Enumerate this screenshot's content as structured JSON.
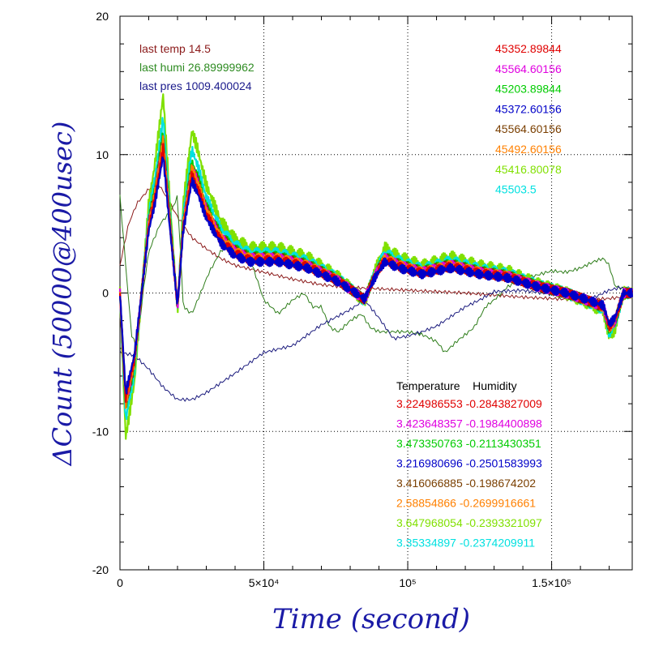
{
  "chart_data": {
    "type": "line",
    "xlabel": "Time (second)",
    "ylabel": "ΔCount (50000@400usec)",
    "xlim": [
      0,
      178000
    ],
    "ylim": [
      -20,
      20
    ],
    "grid": true,
    "x_ticks": [
      {
        "value": 0,
        "label": "0"
      },
      {
        "value": 50000,
        "label": "5×10⁴"
      },
      {
        "value": 100000,
        "label": "10⁵"
      },
      {
        "value": 150000,
        "label": "1.5×10⁵"
      }
    ],
    "y_ticks": [
      {
        "value": -20,
        "label": "-20"
      },
      {
        "value": -10,
        "label": "-10"
      },
      {
        "value": 0,
        "label": "0"
      },
      {
        "value": 10,
        "label": "10"
      },
      {
        "value": 20,
        "label": "20"
      }
    ],
    "env_text": [
      {
        "text": "last temp 14.5",
        "color": "#8b1a1a"
      },
      {
        "text": "last humi 26.89999962",
        "color": "#2e8b22"
      },
      {
        "text": "last pres 1009.400024",
        "color": "#1a1a8b"
      }
    ],
    "channel_means": [
      {
        "text": "45352.89844",
        "color": "#e00000"
      },
      {
        "text": "45564.60156",
        "color": "#e000e0"
      },
      {
        "text": "45203.89844",
        "color": "#00cc00"
      },
      {
        "text": "45372.60156",
        "color": "#0000c8"
      },
      {
        "text": "45564.60156",
        "color": "#7a3f00"
      },
      {
        "text": "45492.60156",
        "color": "#ff8000"
      },
      {
        "text": "45416.80078",
        "color": "#80e000"
      },
      {
        "text": "45503.5",
        "color": "#00e0e0"
      }
    ],
    "coef_header": "Temperature    Humidity",
    "coefficients": [
      {
        "text": "3.224986553 -0.2843827009",
        "color": "#e00000"
      },
      {
        "text": "3.423648357 -0.1984400898",
        "color": "#e000e0"
      },
      {
        "text": "3.473350763 -0.2113430351",
        "color": "#00cc00"
      },
      {
        "text": "3.216980696 -0.2501583993",
        "color": "#0000c8"
      },
      {
        "text": "3.416066885 -0.198674202",
        "color": "#7a3f00"
      },
      {
        "text": "2.58854866 -0.2699916661",
        "color": "#ff8000"
      },
      {
        "text": "3.647968054 -0.2393321097",
        "color": "#80e000"
      },
      {
        "text": "3.35334897 -0.2374209911",
        "color": "#00e0e0"
      }
    ],
    "base_curve": {
      "x": [
        0,
        2000,
        5000,
        8000,
        10000,
        12000,
        15000,
        17000,
        20000,
        22000,
        25000,
        27000,
        30000,
        35000,
        40000,
        45000,
        55000,
        65000,
        75000,
        82000,
        85000,
        88000,
        92000,
        97000,
        105000,
        115000,
        125000,
        135000,
        145000,
        155000,
        162000,
        168000,
        170000,
        172000,
        175000,
        178000
      ],
      "y": [
        0,
        -8,
        -5,
        1,
        5,
        7,
        11,
        6,
        -1,
        5,
        9,
        8,
        6,
        4,
        3,
        2.5,
        2.5,
        2,
        1,
        0,
        -0.5,
        1,
        2.5,
        2,
        1.5,
        2,
        1.5,
        1.2,
        0.5,
        0,
        -0.5,
        -1,
        -2.5,
        -2,
        0,
        0
      ]
    },
    "series": [
      {
        "name": "45352.89844",
        "color": "#e00000",
        "scale": 0.95
      },
      {
        "name": "45564.60156",
        "color": "#e000e0",
        "scale": 1.0
      },
      {
        "name": "45203.89844",
        "color": "#00cc00",
        "scale": 1.05
      },
      {
        "name": "45372.60156",
        "color": "#0000c8",
        "scale": 0.9
      },
      {
        "name": "45564.60156",
        "color": "#7a3f00",
        "scale": 1.02
      },
      {
        "name": "45492.60156",
        "color": "#ff8000",
        "scale": 1.0
      },
      {
        "name": "45416.80078",
        "color": "#80e000",
        "scale": 1.3
      },
      {
        "name": "45503.5",
        "color": "#00e0e0",
        "scale": 1.15
      }
    ],
    "env_series": [
      {
        "name": "last temp 14.5",
        "color": "#8b1a1a",
        "x": [
          0,
          3000,
          6000,
          10000,
          13000,
          16000,
          20000,
          25000,
          30000,
          35000,
          40000,
          50000,
          60000,
          70000,
          80000,
          90000,
          100000,
          120000,
          140000,
          160000,
          170000,
          178000
        ],
        "y": [
          2,
          5,
          6.5,
          7.5,
          8,
          7,
          5.5,
          4,
          3.2,
          2.5,
          2,
          1.5,
          1,
          0.6,
          0.4,
          0.3,
          0.2,
          0,
          -0.3,
          -0.5,
          -0.4,
          -0.2
        ]
      },
      {
        "name": "last humi 26.89999962",
        "color": "#2e7d1a",
        "x": [
          0,
          2000,
          4000,
          6000,
          8000,
          10000,
          14000,
          18000,
          20000,
          22000,
          25000,
          28000,
          31000,
          35000,
          40000,
          46000,
          50000,
          55000,
          60000,
          64000,
          67000,
          70000,
          73000,
          76000,
          80000,
          84000,
          87000,
          90000,
          95000,
          100000,
          105000,
          110000,
          113000,
          117000,
          120000,
          123000,
          127000,
          130000,
          135000,
          140000,
          145000,
          150000,
          155000,
          160000,
          165000,
          168000,
          170000,
          172000,
          175000,
          178000
        ],
        "y": [
          7,
          2,
          -3,
          -4,
          0,
          3,
          5,
          6,
          7,
          -1,
          -1.5,
          0,
          1.5,
          3,
          4,
          2,
          -0.5,
          -1.5,
          -0.5,
          0,
          -1,
          -1,
          -2.5,
          -2.8,
          -2,
          -1.5,
          -2.5,
          -2.8,
          -2.8,
          -2.8,
          -3,
          -3.5,
          -4.3,
          -3.5,
          -3,
          -2.5,
          -1,
          -0.5,
          0.5,
          1,
          1.3,
          1.6,
          1.5,
          1.8,
          2.3,
          2.5,
          2.0,
          0.5,
          0.3,
          0
        ]
      },
      {
        "name": "last pres 1009.400024",
        "color": "#1a1a7d",
        "x": [
          0,
          5000,
          10000,
          15000,
          20000,
          25000,
          30000,
          40000,
          50000,
          60000,
          70000,
          80000,
          85000,
          90000,
          95000,
          100000,
          105000,
          110000,
          115000,
          120000,
          125000,
          130000,
          140000,
          150000,
          160000,
          165000,
          170000,
          174000,
          178000
        ],
        "y": [
          -4.3,
          -4.5,
          -5.5,
          -6.8,
          -7.7,
          -7.7,
          -7.2,
          -5.8,
          -4.3,
          -3.8,
          -2.3,
          -1.2,
          -0.5,
          -1.8,
          -3.3,
          -3.1,
          -2.8,
          -2.4,
          -1.7,
          -1.0,
          -0.5,
          0.1,
          0.2,
          -0.1,
          -0.4,
          -0.3,
          0.2,
          0.4,
          0.3
        ]
      }
    ]
  }
}
